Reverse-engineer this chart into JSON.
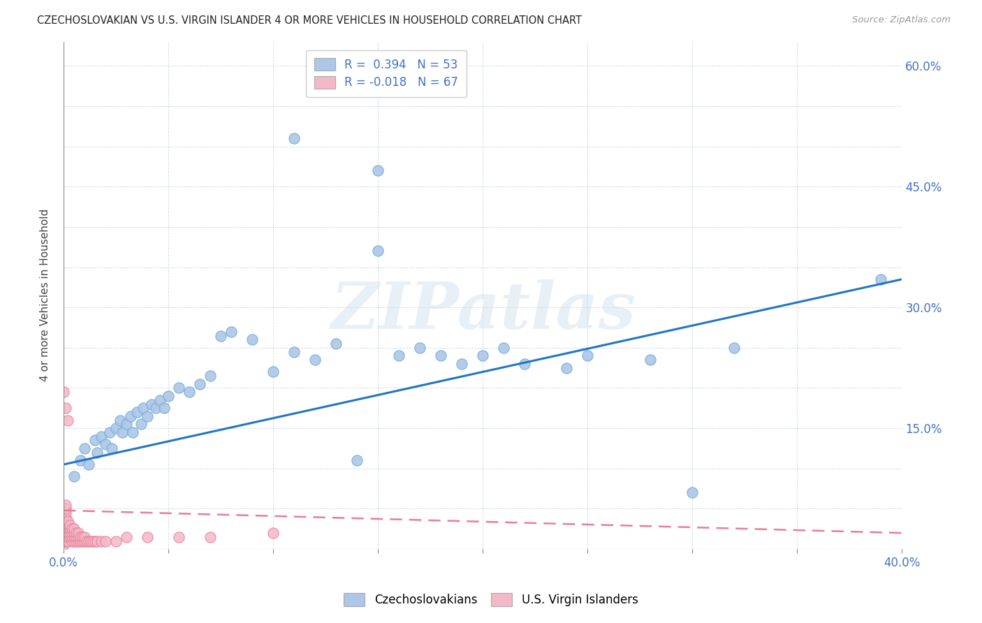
{
  "title": "CZECHOSLOVAKIAN VS U.S. VIRGIN ISLANDER 4 OR MORE VEHICLES IN HOUSEHOLD CORRELATION CHART",
  "source": "Source: ZipAtlas.com",
  "ylabel": "4 or more Vehicles in Household",
  "xlim": [
    0.0,
    0.4
  ],
  "ylim": [
    0.0,
    0.63
  ],
  "blue_color": "#aec6e8",
  "blue_edge": "#6aaed6",
  "pink_color": "#f4b8c8",
  "pink_edge": "#e87d95",
  "blue_line_color": "#2176c7",
  "pink_line_color": "#e87d95",
  "R_blue": 0.394,
  "N_blue": 53,
  "R_pink": -0.018,
  "N_pink": 67,
  "watermark_text": "ZIPatlas",
  "legend_blue_label": "Czechoslovakians",
  "legend_pink_label": "U.S. Virgin Islanders",
  "blue_line_x0": 0.0,
  "blue_line_y0": 0.105,
  "blue_line_x1": 0.4,
  "blue_line_y1": 0.335,
  "pink_line_x0": 0.0,
  "pink_line_y0": 0.048,
  "pink_line_x1": 0.4,
  "pink_line_y1": 0.02,
  "blue_x": [
    0.005,
    0.008,
    0.01,
    0.012,
    0.015,
    0.016,
    0.018,
    0.02,
    0.022,
    0.023,
    0.025,
    0.027,
    0.028,
    0.03,
    0.032,
    0.033,
    0.035,
    0.037,
    0.038,
    0.04,
    0.042,
    0.044,
    0.046,
    0.048,
    0.05,
    0.055,
    0.06,
    0.065,
    0.07,
    0.075,
    0.08,
    0.09,
    0.1,
    0.11,
    0.12,
    0.13,
    0.14,
    0.15,
    0.16,
    0.17,
    0.18,
    0.19,
    0.2,
    0.21,
    0.22,
    0.24,
    0.25,
    0.28,
    0.3,
    0.32,
    0.15,
    0.11,
    0.39
  ],
  "blue_y": [
    0.09,
    0.11,
    0.125,
    0.105,
    0.135,
    0.12,
    0.14,
    0.13,
    0.145,
    0.125,
    0.15,
    0.16,
    0.145,
    0.155,
    0.165,
    0.145,
    0.17,
    0.155,
    0.175,
    0.165,
    0.18,
    0.175,
    0.185,
    0.175,
    0.19,
    0.2,
    0.195,
    0.205,
    0.215,
    0.265,
    0.27,
    0.26,
    0.22,
    0.245,
    0.235,
    0.255,
    0.11,
    0.37,
    0.24,
    0.25,
    0.24,
    0.23,
    0.24,
    0.25,
    0.23,
    0.225,
    0.24,
    0.235,
    0.07,
    0.25,
    0.47,
    0.51,
    0.335
  ],
  "pink_x": [
    0.0,
    0.0,
    0.0,
    0.0,
    0.0,
    0.0,
    0.0,
    0.0,
    0.0,
    0.0,
    0.001,
    0.001,
    0.001,
    0.001,
    0.001,
    0.001,
    0.001,
    0.001,
    0.001,
    0.001,
    0.002,
    0.002,
    0.002,
    0.002,
    0.002,
    0.002,
    0.003,
    0.003,
    0.003,
    0.003,
    0.004,
    0.004,
    0.004,
    0.004,
    0.005,
    0.005,
    0.005,
    0.005,
    0.006,
    0.006,
    0.006,
    0.007,
    0.007,
    0.007,
    0.008,
    0.008,
    0.009,
    0.009,
    0.01,
    0.01,
    0.011,
    0.012,
    0.013,
    0.014,
    0.015,
    0.016,
    0.018,
    0.02,
    0.025,
    0.03,
    0.04,
    0.055,
    0.07,
    0.1,
    0.0,
    0.001,
    0.002
  ],
  "pink_y": [
    0.005,
    0.01,
    0.015,
    0.02,
    0.025,
    0.03,
    0.035,
    0.04,
    0.045,
    0.05,
    0.01,
    0.015,
    0.02,
    0.025,
    0.03,
    0.035,
    0.04,
    0.045,
    0.05,
    0.055,
    0.01,
    0.015,
    0.02,
    0.025,
    0.03,
    0.035,
    0.015,
    0.02,
    0.025,
    0.03,
    0.01,
    0.015,
    0.02,
    0.025,
    0.01,
    0.015,
    0.02,
    0.025,
    0.01,
    0.015,
    0.02,
    0.01,
    0.015,
    0.02,
    0.01,
    0.015,
    0.01,
    0.015,
    0.01,
    0.015,
    0.01,
    0.01,
    0.01,
    0.01,
    0.01,
    0.01,
    0.01,
    0.01,
    0.01,
    0.015,
    0.015,
    0.015,
    0.015,
    0.02,
    0.195,
    0.175,
    0.16
  ]
}
